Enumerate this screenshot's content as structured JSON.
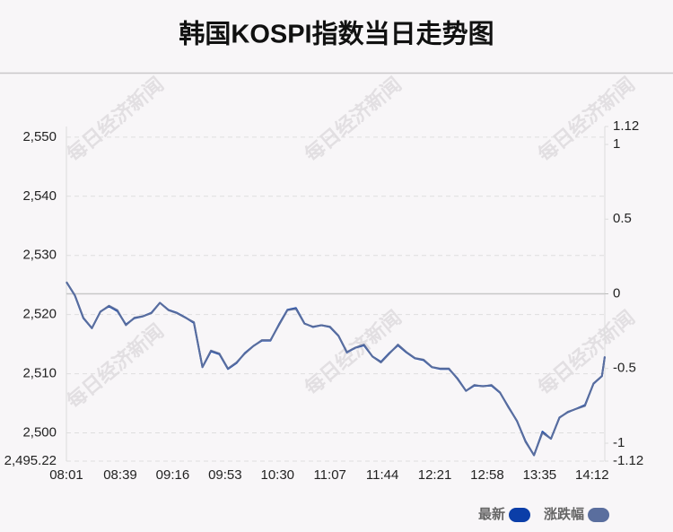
{
  "chart_data": {
    "type": "line",
    "title": "韩国KOSPI指数当日走势图",
    "watermark": "每日经济新闻",
    "x": [
      "08:01",
      "08:07",
      "08:13",
      "08:19",
      "08:25",
      "08:31",
      "08:37",
      "08:43",
      "08:49",
      "08:55",
      "09:01",
      "09:07",
      "09:13",
      "09:19",
      "09:25",
      "09:31",
      "09:37",
      "09:43",
      "09:49",
      "09:55",
      "10:01",
      "10:07",
      "10:13",
      "10:19",
      "10:25",
      "10:31",
      "10:37",
      "10:43",
      "10:49",
      "10:55",
      "11:01",
      "11:07",
      "11:13",
      "11:19",
      "11:25",
      "11:31",
      "11:37",
      "11:43",
      "11:49",
      "11:55",
      "12:01",
      "12:07",
      "12:13",
      "12:19",
      "12:25",
      "12:31",
      "12:37",
      "12:43",
      "12:49",
      "12:55",
      "13:01",
      "13:07",
      "13:13",
      "13:19",
      "13:25",
      "13:31",
      "13:37",
      "13:43",
      "13:49",
      "13:55",
      "14:01",
      "14:07",
      "14:13",
      "14:19",
      "14:21"
    ],
    "xlim": [
      "08:01",
      "14:21"
    ],
    "xticks": [
      "08:01",
      "08:39",
      "09:16",
      "09:53",
      "10:30",
      "11:07",
      "11:44",
      "12:21",
      "12:58",
      "13:35",
      "14:12"
    ],
    "series": [
      {
        "name": "最新",
        "color": "#0b3ea8",
        "values": [
          2525.5,
          2523.2,
          2519.4,
          2517.7,
          2520.5,
          2521.4,
          2520.6,
          2518.3,
          2519.4,
          2519.7,
          2520.3,
          2522.0,
          2520.8,
          2520.3,
          2519.5,
          2518.6,
          2511.1,
          2513.8,
          2513.3,
          2510.8,
          2511.8,
          2513.5,
          2514.7,
          2515.6,
          2515.6,
          2518.3,
          2520.8,
          2521.1,
          2518.5,
          2517.9,
          2518.2,
          2517.9,
          2516.4,
          2513.6,
          2514.4,
          2514.8,
          2512.9,
          2512.0,
          2513.5,
          2514.8,
          2513.6,
          2512.6,
          2512.3,
          2511.1,
          2510.8,
          2510.8,
          2509.2,
          2507.1,
          2508.0,
          2507.9,
          2508.0,
          2506.8,
          2504.4,
          2502.0,
          2498.6,
          2496.2,
          2500.2,
          2499.0,
          2502.6,
          2503.5,
          2504.1,
          2504.7,
          2508.3,
          2509.6,
          2512.9
        ]
      },
      {
        "name": "涨跌幅",
        "color": "#5a6e9e",
        "axis": "y2",
        "values": [
          0.08,
          -0.01,
          -0.16,
          -0.23,
          -0.12,
          -0.08,
          -0.11,
          -0.21,
          -0.16,
          -0.15,
          -0.13,
          -0.06,
          -0.11,
          -0.13,
          -0.16,
          -0.19,
          -0.49,
          -0.38,
          -0.4,
          -0.5,
          -0.46,
          -0.4,
          -0.35,
          -0.31,
          -0.31,
          -0.21,
          -0.11,
          -0.1,
          -0.2,
          -0.22,
          -0.21,
          -0.22,
          -0.28,
          -0.39,
          -0.36,
          -0.34,
          -0.42,
          -0.46,
          -0.4,
          -0.34,
          -0.39,
          -0.43,
          -0.44,
          -0.49,
          -0.5,
          -0.5,
          -0.57,
          -0.65,
          -0.61,
          -0.62,
          -0.61,
          -0.66,
          -0.76,
          -0.85,
          -0.99,
          -1.08,
          -0.93,
          -0.97,
          -0.83,
          -0.79,
          -0.77,
          -0.75,
          -0.6,
          -0.55,
          -0.42
        ]
      }
    ],
    "ylim": [
      2495.22,
      2551.8
    ],
    "yticks": [
      {
        "value": 2495.22,
        "label": "2,495.22"
      },
      {
        "value": 2500,
        "label": "2,500"
      },
      {
        "value": 2510,
        "label": "2,510"
      },
      {
        "value": 2520,
        "label": "2,520"
      },
      {
        "value": 2530,
        "label": "2,530"
      },
      {
        "value": 2540,
        "label": "2,540"
      },
      {
        "value": 2550,
        "label": "2,550"
      }
    ],
    "y2lim": [
      -1.12,
      1.12
    ],
    "y2ticks": [
      -1.12,
      -1,
      -0.5,
      0,
      0.5,
      1,
      1.12
    ],
    "grid": true
  }
}
